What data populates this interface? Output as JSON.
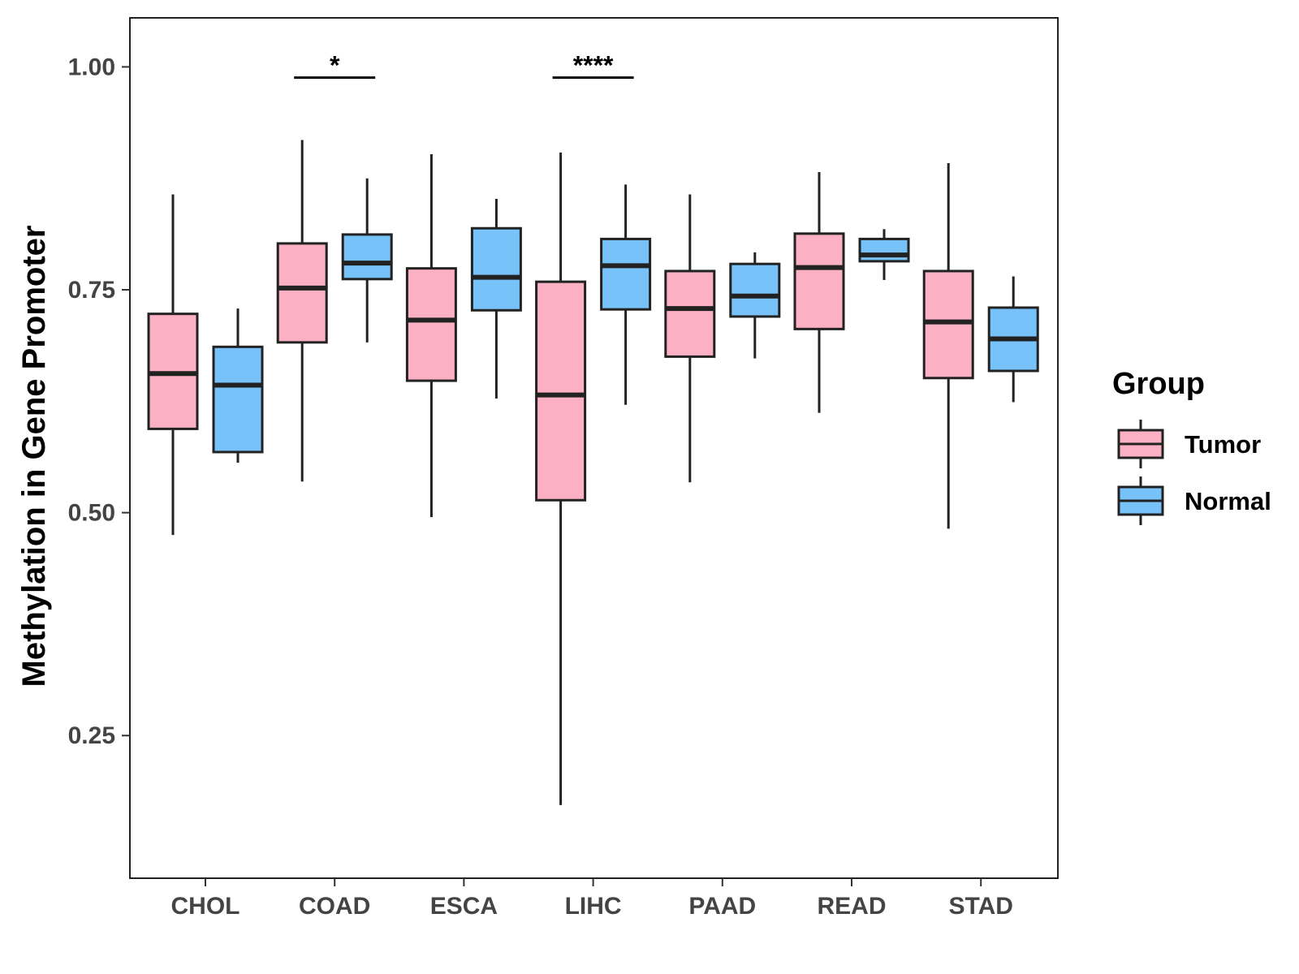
{
  "chart_data": {
    "type": "boxplot",
    "title": "",
    "xlabel": "",
    "ylabel": "Methylation in Gene Promoter",
    "ylim": [
      0.09,
      1.055
    ],
    "yticks": [
      0.25,
      0.5,
      0.75,
      1.0
    ],
    "ytick_labels": [
      "0.25",
      "0.50",
      "0.75",
      "1.00"
    ],
    "categories": [
      "CHOL",
      "COAD",
      "ESCA",
      "LIHC",
      "PAAD",
      "READ",
      "STAD"
    ],
    "legend": {
      "title": "Group",
      "position": "right",
      "entries": [
        {
          "name": "Tumor",
          "color": "#FBB1C3"
        },
        {
          "name": "Normal",
          "color": "#77C2F9"
        }
      ]
    },
    "series": [
      {
        "name": "Tumor",
        "color": "#FBB1C3",
        "boxes": [
          {
            "min": 0.475,
            "q1": 0.594,
            "median": 0.656,
            "q3": 0.723,
            "max": 0.857
          },
          {
            "min": 0.535,
            "q1": 0.691,
            "median": 0.752,
            "q3": 0.802,
            "max": 0.918
          },
          {
            "min": 0.495,
            "q1": 0.648,
            "median": 0.716,
            "q3": 0.774,
            "max": 0.902
          },
          {
            "min": 0.172,
            "q1": 0.514,
            "median": 0.632,
            "q3": 0.759,
            "max": 0.904
          },
          {
            "min": 0.534,
            "q1": 0.675,
            "median": 0.729,
            "q3": 0.771,
            "max": 0.857
          },
          {
            "min": 0.612,
            "q1": 0.706,
            "median": 0.775,
            "q3": 0.813,
            "max": 0.882
          },
          {
            "min": 0.482,
            "q1": 0.651,
            "median": 0.714,
            "q3": 0.771,
            "max": 0.892
          }
        ]
      },
      {
        "name": "Normal",
        "color": "#77C2F9",
        "boxes": [
          {
            "min": 0.556,
            "q1": 0.568,
            "median": 0.643,
            "q3": 0.686,
            "max": 0.729
          },
          {
            "min": 0.691,
            "q1": 0.762,
            "median": 0.78,
            "q3": 0.812,
            "max": 0.875
          },
          {
            "min": 0.628,
            "q1": 0.727,
            "median": 0.764,
            "q3": 0.819,
            "max": 0.852
          },
          {
            "min": 0.621,
            "q1": 0.728,
            "median": 0.777,
            "q3": 0.807,
            "max": 0.868
          },
          {
            "min": 0.673,
            "q1": 0.72,
            "median": 0.743,
            "q3": 0.779,
            "max": 0.792
          },
          {
            "min": 0.761,
            "q1": 0.782,
            "median": 0.789,
            "q3": 0.807,
            "max": 0.818
          },
          {
            "min": 0.624,
            "q1": 0.659,
            "median": 0.695,
            "q3": 0.73,
            "max": 0.765
          }
        ]
      }
    ],
    "annotations": [
      {
        "category": "COAD",
        "label": "*",
        "y": 0.988
      },
      {
        "category": "LIHC",
        "label": "****",
        "y": 0.988
      }
    ]
  }
}
